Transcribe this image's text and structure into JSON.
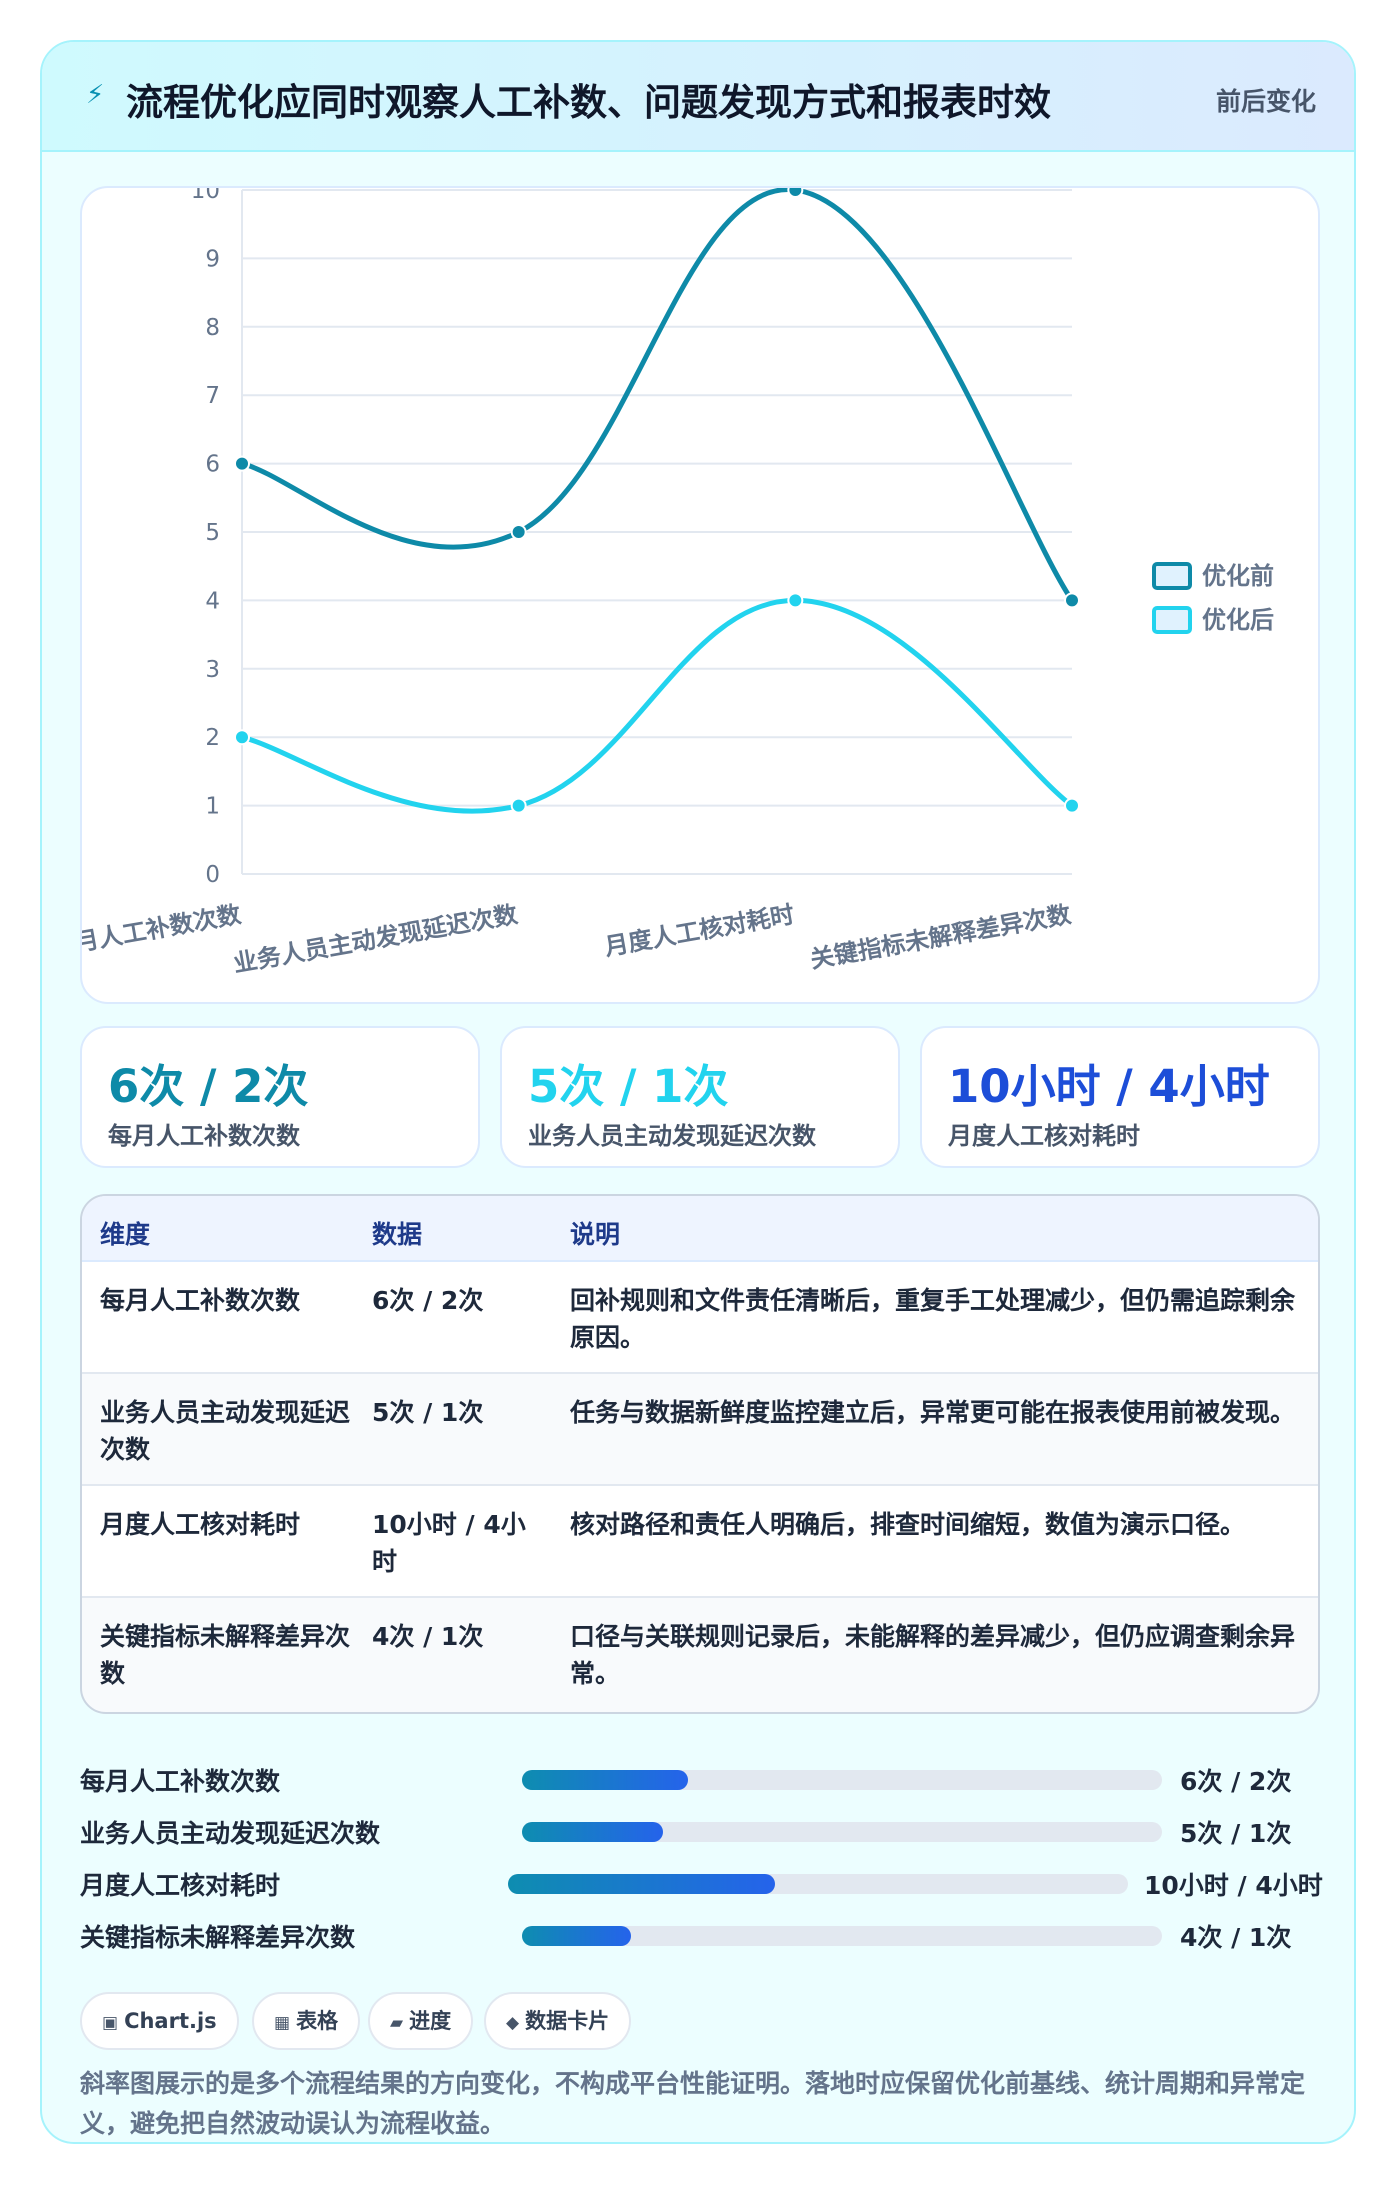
{
  "header": {
    "icon": "lightning-icon",
    "title": "流程优化应同时观察人工补数、问题发现方式和报表时效",
    "badge": "前后变化"
  },
  "colors": {
    "before": "#0e8aa8",
    "after": "#22d3ee",
    "stat_blue": "#1d4ed8"
  },
  "chart_data": {
    "type": "line",
    "categories": [
      "每月人工补数次数",
      "业务人员主动发现延迟次数",
      "月度人工核对耗时",
      "关键指标未解释差异次数"
    ],
    "series": [
      {
        "name": "优化前",
        "values": [
          6,
          5,
          10,
          4
        ]
      },
      {
        "name": "优化后",
        "values": [
          2,
          1,
          4,
          1
        ]
      }
    ],
    "ylim": [
      0,
      10
    ],
    "yticks": [
      "0",
      "1",
      "2",
      "3",
      "4",
      "5",
      "6",
      "7",
      "8",
      "9",
      "10"
    ],
    "grid": true,
    "legend": "right"
  },
  "stats": [
    {
      "value": "6次 / 2次",
      "label": "每月人工补数次数"
    },
    {
      "value": "5次 / 1次",
      "label": "业务人员主动发现延迟次数"
    },
    {
      "value": "10小时 / 4小时",
      "label": "月度人工核对耗时"
    }
  ],
  "table": {
    "headers": [
      "维度",
      "数据",
      "说明"
    ],
    "rows": [
      {
        "dim": "每月人工补数次数",
        "data": "6次 / 2次",
        "desc": "回补规则和文件责任清晰后，重复手工处理减少，但仍需追踪剩余原因。"
      },
      {
        "dim": "业务人员主动发现延迟次数",
        "data": "5次 / 1次",
        "desc": "任务与数据新鲜度监控建立后，异常更可能在报表使用前被发现。"
      },
      {
        "dim": "月度人工核对耗时",
        "data": "10小时 / 4小时",
        "desc": "核对路径和责任人明确后，排查时间缩短，数值为演示口径。"
      },
      {
        "dim": "关键指标未解释差异次数",
        "data": "4次 / 1次",
        "desc": "口径与关联规则记录后，未能解释的差异减少，但仍应调查剩余异常。"
      }
    ]
  },
  "progress": [
    {
      "label": "每月人工补数次数",
      "value": "6次 / 2次",
      "fraction": 0.26
    },
    {
      "label": "业务人员主动发现延迟次数",
      "value": "5次 / 1次",
      "fraction": 0.22
    },
    {
      "label": "月度人工核对耗时",
      "value": "10小时 / 4小时",
      "fraction": 0.43
    },
    {
      "label": "关键指标未解释差异次数",
      "value": "4次 / 1次",
      "fraction": 0.17
    }
  ],
  "chips": [
    {
      "icon": "chart-icon",
      "glyph": "▣",
      "label": "Chart.js"
    },
    {
      "icon": "table-icon",
      "glyph": "▦",
      "label": "表格"
    },
    {
      "icon": "progress-icon",
      "glyph": "▰",
      "label": "进度"
    },
    {
      "icon": "card-icon",
      "glyph": "◆",
      "label": "数据卡片"
    }
  ],
  "note": "斜率图展示的是多个流程结果的方向变化，不构成平台性能证明。落地时应保留优化前基线、统计周期和异常定义，避免把自然波动误认为流程收益。"
}
